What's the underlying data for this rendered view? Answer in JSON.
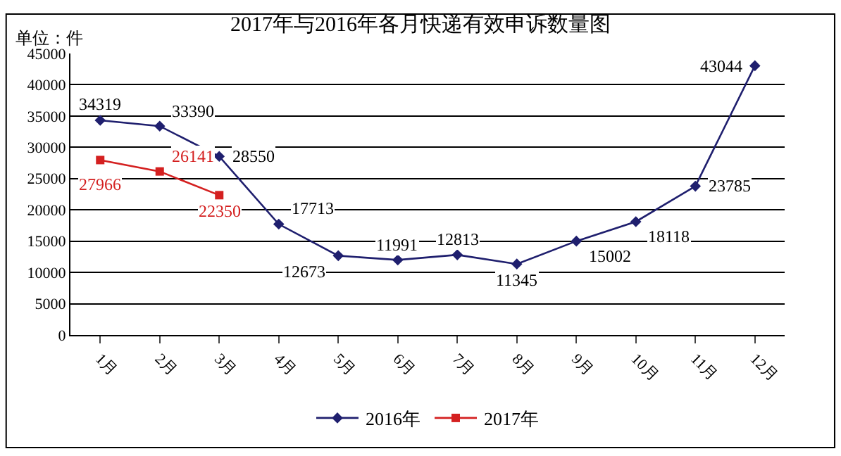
{
  "chart_data": {
    "type": "line",
    "title": "2017年与2016年各月快递有效申诉数量图",
    "annotations": [
      "单位：件"
    ],
    "categories": [
      "1月",
      "2月",
      "3月",
      "4月",
      "5月",
      "6月",
      "7月",
      "8月",
      "9月",
      "10月",
      "11月",
      "12月"
    ],
    "series": [
      {
        "name": "2016年",
        "color": "#1f1f6e",
        "marker": "diamond",
        "values": [
          34319,
          33390,
          28550,
          17713,
          12673,
          11991,
          12813,
          11345,
          15002,
          18118,
          23785,
          43044
        ]
      },
      {
        "name": "2017年",
        "color": "#d42020",
        "marker": "square",
        "values": [
          27966,
          26141,
          22350,
          null,
          null,
          null,
          null,
          null,
          null,
          null,
          null,
          null
        ]
      }
    ],
    "ylim": [
      0,
      45000
    ],
    "yticks": [
      0,
      5000,
      10000,
      15000,
      20000,
      25000,
      30000,
      35000,
      40000,
      45000
    ],
    "grid": "y",
    "legend": "bottom",
    "data_labels": true,
    "line_style": "solid"
  }
}
